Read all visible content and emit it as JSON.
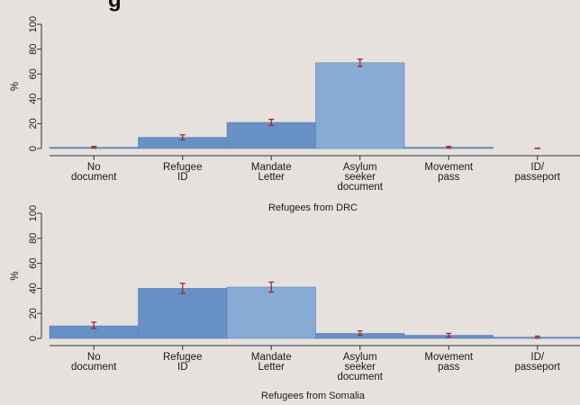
{
  "header": {
    "title_fragment": "g"
  },
  "chart_data": [
    {
      "type": "bar",
      "title": "Refugees from DRC",
      "ylabel": "%",
      "ylim": [
        0,
        100
      ],
      "yticks": [
        0,
        20,
        40,
        60,
        80,
        100
      ],
      "categories": [
        "No\ndocument",
        "Refugee\nID",
        "Mandate\nLetter",
        "Asylum\nseeker\ndocument",
        "Movement\npass",
        "ID/\npasseport"
      ],
      "values": [
        1,
        9,
        21,
        69,
        1,
        0
      ],
      "error_bars": [
        [
          0.3,
          1.7
        ],
        [
          7,
          11
        ],
        [
          18.5,
          23.5
        ],
        [
          66,
          72
        ],
        [
          0.3,
          1.7
        ],
        [
          0,
          0.3
        ]
      ],
      "grid": false
    },
    {
      "type": "bar",
      "title": "Refugees from Somalia",
      "ylabel": "%",
      "ylim": [
        0,
        100
      ],
      "yticks": [
        0,
        20,
        40,
        60,
        80,
        100
      ],
      "categories": [
        "No\ndocument",
        "Refugee\nID",
        "Mandate\nLetter",
        "Asylum\nseeker\ndocument",
        "Movement\npass",
        "ID/\npasseport"
      ],
      "values": [
        10,
        40,
        41,
        4,
        2.5,
        1
      ],
      "error_bars": [
        [
          8,
          13
        ],
        [
          36,
          44
        ],
        [
          37,
          45
        ],
        [
          2.5,
          6
        ],
        [
          1,
          4
        ],
        [
          0.2,
          1.8
        ]
      ],
      "grid": false
    }
  ],
  "colors": {
    "background": "#e6e1dd",
    "bar_dark": "#6790c4",
    "bar_light": "#88abd6",
    "bar_stroke": "#5b82b6",
    "error_bar": "#9a2e2e",
    "axis": "#333333"
  }
}
